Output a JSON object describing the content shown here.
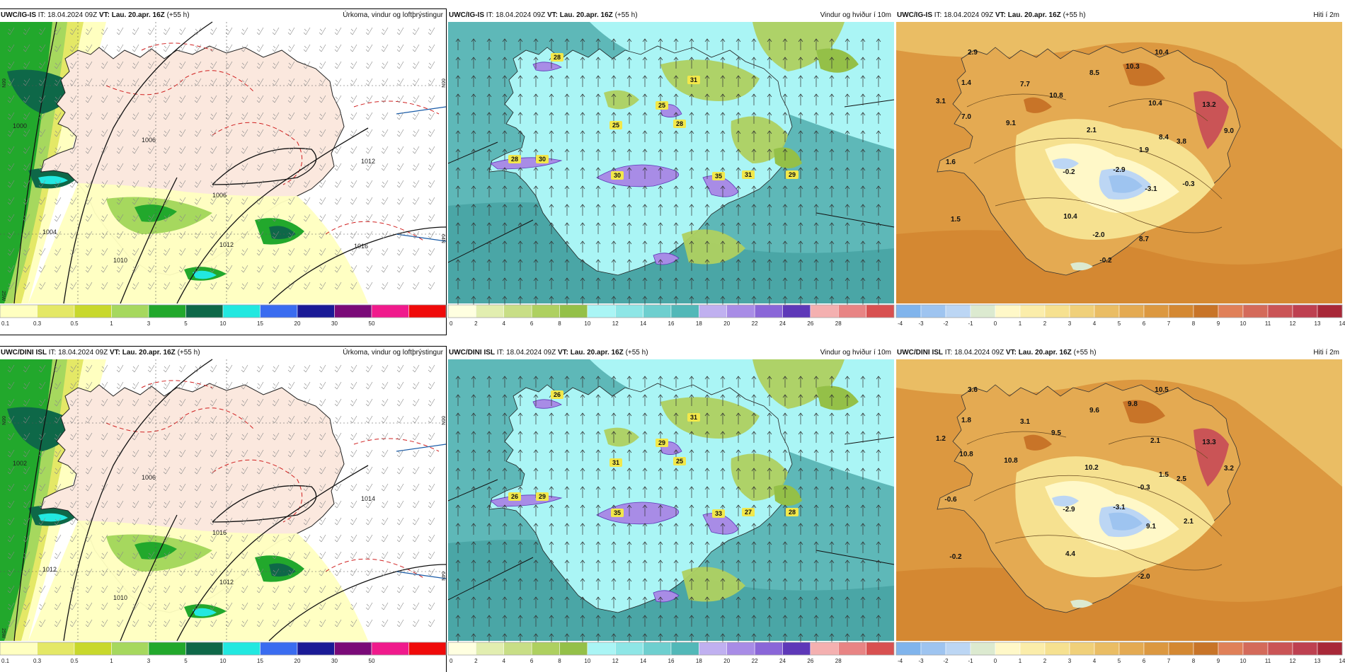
{
  "row_top": {
    "run_label": "UWC/IG-IS",
    "it": "IT: 18.04.2024 09Z",
    "vt": "VT: Lau. 20.apr. 16Z",
    "lead": "(+55 h)"
  },
  "row_bottom": {
    "run_label": "UWC/DINI ISL",
    "it": "IT: 18.04.2024 09Z",
    "vt": "VT: Lau. 20.apr. 16Z",
    "lead": "(+55 h)"
  },
  "titles": {
    "precip": "Úrkoma, vindur og loftþrýstingur",
    "wind": "Vindur og hviður í 10m",
    "temp": "Hiti í 2m"
  },
  "side_labels": {
    "lat_top": "66N",
    "lat_bottom": "64N",
    "lat_left_top": "66N",
    "lat_left_bottom": "25W"
  },
  "colorbars": {
    "precip": {
      "labels": [
        "0.1",
        "0.3",
        "0.5",
        "1",
        "3",
        "5",
        "10",
        "15",
        "20",
        "30",
        "50"
      ],
      "colors": [
        "#ffffc0",
        "#e4e866",
        "#c8d82c",
        "#a6d85e",
        "#22a82c",
        "#0e6848",
        "#22e8e0",
        "#3a6cf0",
        "#1a1a96",
        "#7a0a78",
        "#f01a8c",
        "#f00a0a"
      ]
    },
    "wind": {
      "labels": [
        "0",
        "2",
        "4",
        "6",
        "8",
        "10",
        "12",
        "14",
        "16",
        "18",
        "20",
        "22",
        "24",
        "26",
        "28"
      ],
      "colors": [
        "#ffffe0",
        "#e2eeb0",
        "#c8de86",
        "#aed060",
        "#94c048",
        "#aaf5f5",
        "#8ee6e6",
        "#6ecfcf",
        "#52b8b8",
        "#c0b0f0",
        "#a88ce6",
        "#8a66d8",
        "#5e38b8",
        "#f4b0b0",
        "#e88484",
        "#d85050"
      ]
    },
    "temp": {
      "labels": [
        "-4",
        "-3",
        "-2",
        "-1",
        "0",
        "1",
        "2",
        "3",
        "4",
        "5",
        "6",
        "7",
        "8",
        "9",
        "10",
        "11",
        "12",
        "13",
        "14"
      ],
      "colors": [
        "#80b4ec",
        "#9ec4f0",
        "#bcd6f4",
        "#dcead0",
        "#fff8c8",
        "#fbedaa",
        "#f6e190",
        "#f0d07a",
        "#eabd64",
        "#e4aa52",
        "#dc9840",
        "#d48832",
        "#c87428",
        "#e08058",
        "#d46a5a",
        "#ca5456",
        "#be4050",
        "#a82838"
      ]
    }
  },
  "wind_maxima": {
    "top": [
      "28",
      "28",
      "30",
      "25",
      "25",
      "28",
      "31",
      "30",
      "35",
      "31",
      "29"
    ],
    "bottom": [
      "26",
      "26",
      "29",
      "29",
      "31",
      "25",
      "31",
      "35",
      "33",
      "27",
      "28"
    ]
  },
  "temp_values": {
    "top": [
      "2.9",
      "1.4",
      "3.1",
      "7.7",
      "10.8",
      "8.5",
      "10.3",
      "10.4",
      "7.0",
      "9.1",
      "10.4",
      "13.2",
      "9.0",
      "3.8",
      "2.1",
      "8.4",
      "1.6",
      "-0.2",
      "-2.9",
      "1.9",
      "-3.1",
      "-0.3",
      "10.4",
      "8.7",
      "1.5",
      "-2.0",
      "-0.2"
    ],
    "bottom": [
      "3.6",
      "1.8",
      "1.2",
      "3.1",
      "9.5",
      "9.6",
      "9.8",
      "10.5",
      "10.8",
      "10.8",
      "2.1",
      "13.3",
      "3.2",
      "2.5",
      "10.2",
      "1.5",
      "-0.6",
      "-2.9",
      "-3.1",
      "-0.3",
      "9.1",
      "2.1",
      "4.4",
      "-2.0",
      "-0.2"
    ]
  },
  "isobar_labels": {
    "top": [
      "1000",
      "1006",
      "1010",
      "1012",
      "1012",
      "1006",
      "1004",
      "1016"
    ],
    "bottom": [
      "1002",
      "1006",
      "1010",
      "1012",
      "1014",
      "1016",
      "1012"
    ]
  }
}
